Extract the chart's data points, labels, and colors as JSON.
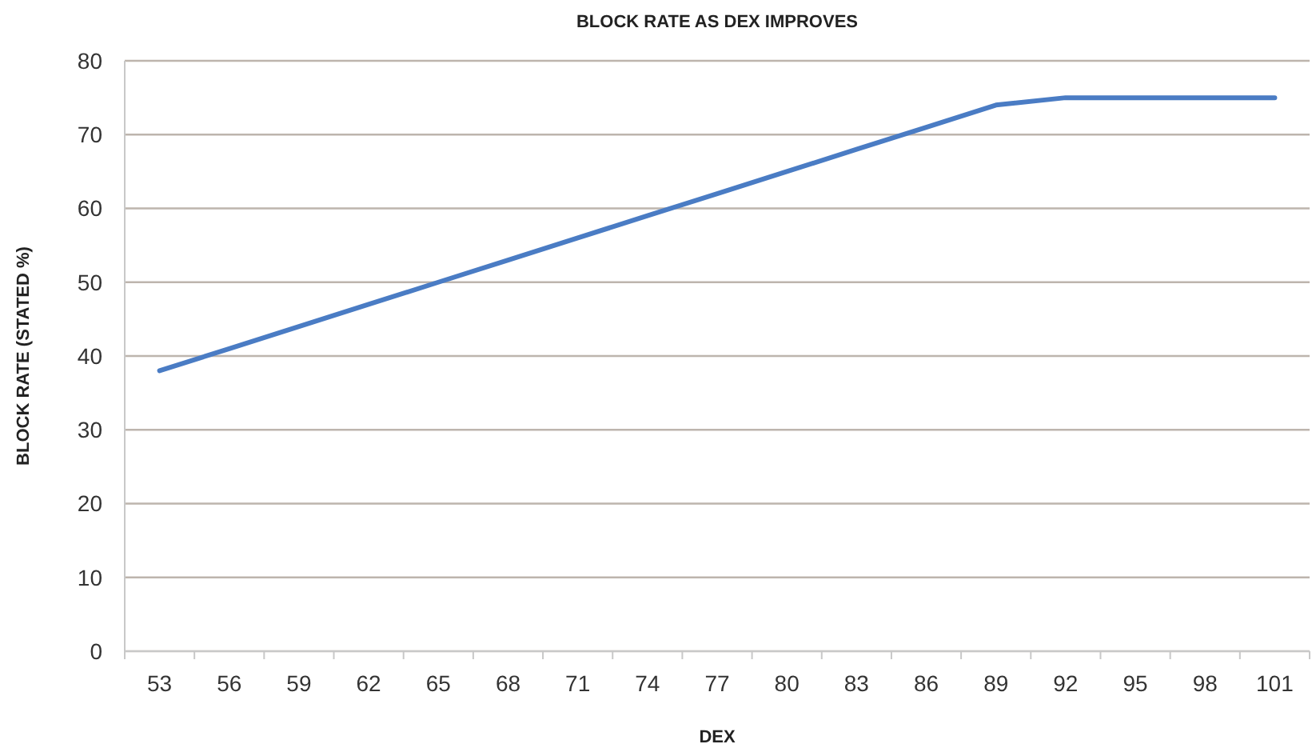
{
  "chart_data": {
    "type": "line",
    "title": "BLOCK RATE AS DEX IMPROVES",
    "xlabel": "DEX",
    "ylabel": "BLOCK RATE (STATED %)",
    "categories": [
      "53",
      "56",
      "59",
      "62",
      "65",
      "68",
      "71",
      "74",
      "77",
      "80",
      "83",
      "86",
      "89",
      "92",
      "95",
      "98",
      "101"
    ],
    "series": [
      {
        "color": "#4a7cc4",
        "values": [
          38,
          41,
          44,
          47,
          50,
          53,
          56,
          59,
          62,
          65,
          68,
          71,
          74,
          75,
          75,
          75,
          75
        ]
      }
    ],
    "ylim": [
      0,
      80
    ],
    "yticks": [
      0,
      10,
      20,
      30,
      40,
      50,
      60,
      70,
      80
    ],
    "grid": "y",
    "marker": "none",
    "line_style": "solid"
  }
}
